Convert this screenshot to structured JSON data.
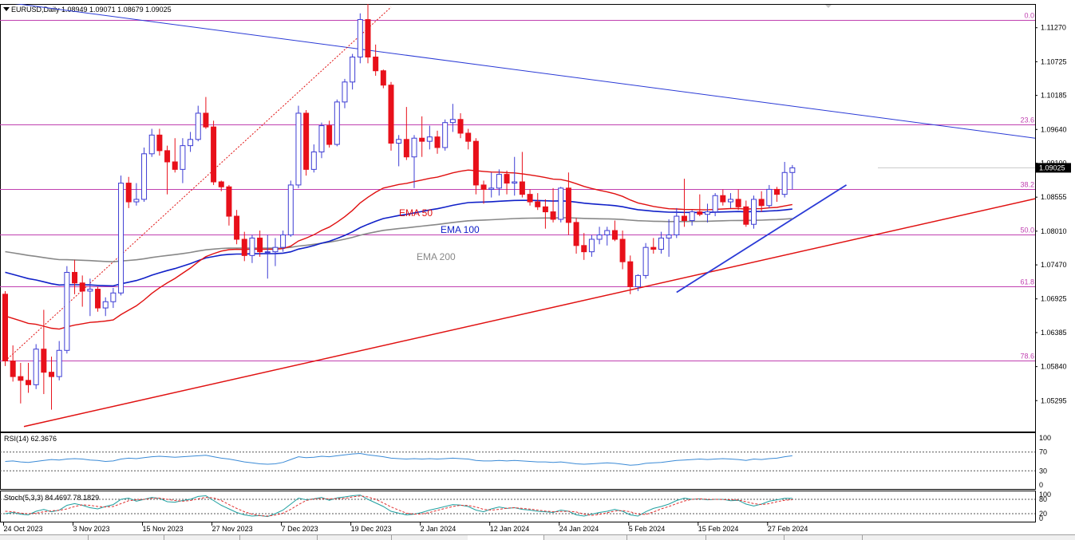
{
  "header": {
    "symbol_line": "EURUSD,Daily  1.08949 1.09071 1.08679 1.09025"
  },
  "colors": {
    "bull_candle": "#3c3cd4",
    "bear_candle": "#e8101a",
    "ema50": "#e01010",
    "ema100": "#1020c8",
    "ema200": "#888888",
    "fib": "#c040b0",
    "trend_down": "#2a3ad6",
    "trend_up_red": "#e01010",
    "rsi_line": "#3a8ad6",
    "stoch_main": "#20a0a0",
    "stoch_signal": "#e03030"
  },
  "chart_data": [
    {
      "type": "candlestick",
      "title": "EURUSD,Daily",
      "ylim": [
        1.048,
        1.1165
      ],
      "y_ticks": [
        "1.11270",
        "1.10725",
        "1.10185",
        "1.09640",
        "1.09100",
        "1.08555",
        "1.08010",
        "1.07470",
        "1.06925",
        "1.06385",
        "1.05840",
        "1.05295"
      ],
      "y_tick_values": [
        1.1127,
        1.10725,
        1.10185,
        1.0964,
        1.091,
        1.08555,
        1.0801,
        1.0747,
        1.06925,
        1.06385,
        1.0584,
        1.05295
      ],
      "current_price_label": "1.09025",
      "current_price": 1.09025,
      "x_labels": [
        "24 Oct 2023",
        "3 Nov 2023",
        "15 Nov 2023",
        "27 Nov 2023",
        "7 Dec 2023",
        "19 Dec 2023",
        "2 Jan 2024",
        "12 Jan 2024",
        "24 Jan 2024",
        "5 Feb 2024",
        "15 Feb 2024",
        "27 Feb 2024"
      ],
      "x_label_bar_index": [
        0,
        9,
        18,
        27,
        36,
        45,
        54,
        63,
        72,
        81,
        90,
        99
      ],
      "candles": [
        [
          1.07,
          1.0705,
          1.0585,
          1.0593
        ],
        [
          1.0593,
          1.0618,
          1.056,
          1.0568
        ],
        [
          1.0568,
          1.059,
          1.0525,
          1.0562
        ],
        [
          1.0562,
          1.059,
          1.0542,
          1.0555
        ],
        [
          1.0555,
          1.062,
          1.0548,
          1.0612
        ],
        [
          1.0612,
          1.0675,
          1.054,
          1.0575
        ],
        [
          1.0575,
          1.06,
          1.0515,
          1.0568
        ],
        [
          1.0568,
          1.0625,
          1.0562,
          1.061
        ],
        [
          1.061,
          1.0745,
          1.0605,
          1.0735
        ],
        [
          1.0735,
          1.0755,
          1.07,
          1.0718
        ],
        [
          1.0718,
          1.073,
          1.068,
          1.0705
        ],
        [
          1.0705,
          1.0725,
          1.0665,
          1.0708
        ],
        [
          1.0708,
          1.0712,
          1.0672,
          1.0678
        ],
        [
          1.0678,
          1.0695,
          1.0665,
          1.0688
        ],
        [
          1.0688,
          1.071,
          1.0678,
          1.0702
        ],
        [
          1.0702,
          1.089,
          1.0698,
          1.0878
        ],
        [
          1.0878,
          1.0888,
          1.0838,
          1.0848
        ],
        [
          1.0848,
          1.0878,
          1.0842,
          1.0852
        ],
        [
          1.0852,
          1.0935,
          1.0848,
          1.0925
        ],
        [
          1.0925,
          1.0965,
          1.092,
          1.0955
        ],
        [
          1.0955,
          1.0965,
          1.0922,
          1.093
        ],
        [
          1.093,
          1.0938,
          1.086,
          1.0912
        ],
        [
          1.0912,
          1.095,
          1.0895,
          1.09
        ],
        [
          1.09,
          1.095,
          1.0878,
          1.0938
        ],
        [
          1.0938,
          1.096,
          1.0928,
          1.0948
        ],
        [
          1.0948,
          1.1002,
          1.0945,
          1.099
        ],
        [
          1.099,
          1.1016,
          1.0965,
          1.0968
        ],
        [
          1.0968,
          1.0978,
          1.0875,
          1.088
        ],
        [
          1.088,
          1.0882,
          1.0865,
          1.0872
        ],
        [
          1.0872,
          1.0875,
          1.081,
          1.0825
        ],
        [
          1.0825,
          1.0835,
          1.078,
          1.0788
        ],
        [
          1.0788,
          1.08,
          1.0753,
          1.0762
        ],
        [
          1.0762,
          1.0795,
          1.075,
          1.079
        ],
        [
          1.079,
          1.0802,
          1.076,
          1.0768
        ],
        [
          1.0768,
          1.0795,
          1.0725,
          1.0768
        ],
        [
          1.0768,
          1.079,
          1.0745,
          1.0775
        ],
        [
          1.0775,
          1.0802,
          1.0768,
          1.0795
        ],
        [
          1.0795,
          1.0882,
          1.0792,
          1.0875
        ],
        [
          1.0875,
          1.1002,
          1.087,
          1.099
        ],
        [
          1.099,
          1.0995,
          1.089,
          1.09
        ],
        [
          1.09,
          1.094,
          1.0895,
          1.0928
        ],
        [
          1.0928,
          1.0975,
          1.0918,
          1.097
        ],
        [
          1.097,
          1.0978,
          1.0935,
          1.094
        ],
        [
          1.094,
          1.1012,
          1.0937,
          1.1008
        ],
        [
          1.1008,
          1.1045,
          1.0998,
          1.104
        ],
        [
          1.104,
          1.1085,
          1.1028,
          1.108
        ],
        [
          1.108,
          1.115,
          1.107,
          1.114
        ],
        [
          1.114,
          1.1165,
          1.107,
          1.108
        ],
        [
          1.108,
          1.11,
          1.105,
          1.1058
        ],
        [
          1.1058,
          1.106,
          1.103,
          1.1035
        ],
        [
          1.1035,
          1.104,
          1.093,
          1.0942
        ],
        [
          1.0942,
          1.0955,
          1.0905,
          1.0948
        ],
        [
          1.0948,
          1.1,
          1.0915,
          1.092
        ],
        [
          1.092,
          1.0955,
          1.087,
          1.095
        ],
        [
          1.095,
          1.0985,
          1.092,
          1.0945
        ],
        [
          1.0945,
          1.097,
          1.0932,
          1.0952
        ],
        [
          1.0952,
          1.0962,
          1.0925,
          1.0935
        ],
        [
          1.0935,
          1.098,
          1.093,
          1.0975
        ],
        [
          1.0975,
          1.1005,
          1.096,
          1.098
        ],
        [
          1.098,
          1.099,
          1.095,
          1.0958
        ],
        [
          1.0958,
          1.0965,
          1.0932,
          1.0945
        ],
        [
          1.0945,
          1.095,
          1.086,
          1.0875
        ],
        [
          1.0875,
          1.0882,
          1.0845,
          1.0868
        ],
        [
          1.0868,
          1.0895,
          1.0855,
          1.087
        ],
        [
          1.087,
          1.09,
          1.0858,
          1.0892
        ],
        [
          1.0892,
          1.0898,
          1.086,
          1.0878
        ],
        [
          1.0878,
          1.092,
          1.0858,
          1.088
        ],
        [
          1.088,
          1.0928,
          1.0855,
          1.086
        ],
        [
          1.086,
          1.0868,
          1.0842,
          1.0848
        ],
        [
          1.0848,
          1.0862,
          1.0835,
          1.084
        ],
        [
          1.084,
          1.0852,
          1.0805,
          1.0832
        ],
        [
          1.0832,
          1.087,
          1.0815,
          1.082
        ],
        [
          1.082,
          1.0872,
          1.0815,
          1.087
        ],
        [
          1.087,
          1.0895,
          1.0795,
          1.0815
        ],
        [
          1.0815,
          1.0822,
          1.0765,
          1.0778
        ],
        [
          1.0778,
          1.0798,
          1.0755,
          1.0768
        ],
        [
          1.0768,
          1.0795,
          1.076,
          1.0788
        ],
        [
          1.0788,
          1.0808,
          1.078,
          1.0795
        ],
        [
          1.0795,
          1.0808,
          1.0778,
          1.0802
        ],
        [
          1.0802,
          1.0818,
          1.0785,
          1.0788
        ],
        [
          1.0788,
          1.0802,
          1.074,
          1.0752
        ],
        [
          1.0752,
          1.0762,
          1.07,
          1.0712
        ],
        [
          1.0712,
          1.0732,
          1.0705,
          1.073
        ],
        [
          1.073,
          1.0782,
          1.0725,
          1.0775
        ],
        [
          1.0775,
          1.079,
          1.0765,
          1.0772
        ],
        [
          1.0772,
          1.08,
          1.0765,
          1.079
        ],
        [
          1.079,
          1.082,
          1.076,
          1.0795
        ],
        [
          1.0795,
          1.0838,
          1.079,
          1.0825
        ],
        [
          1.0825,
          1.0885,
          1.0808,
          1.0818
        ],
        [
          1.0818,
          1.0835,
          1.081,
          1.0832
        ],
        [
          1.0832,
          1.086,
          1.0825,
          1.0828
        ],
        [
          1.0828,
          1.0845,
          1.0815,
          1.0832
        ],
        [
          1.0832,
          1.0862,
          1.0825,
          1.0858
        ],
        [
          1.0858,
          1.0868,
          1.0842,
          1.0848
        ],
        [
          1.0848,
          1.0862,
          1.0838,
          1.0852
        ],
        [
          1.0852,
          1.0868,
          1.0835,
          1.084
        ],
        [
          1.084,
          1.085,
          1.0808,
          1.0812
        ],
        [
          1.0812,
          1.0858,
          1.0805,
          1.0852
        ],
        [
          1.0852,
          1.0865,
          1.0832,
          1.0842
        ],
        [
          1.0842,
          1.0875,
          1.0838,
          1.0868
        ],
        [
          1.0868,
          1.0872,
          1.0848,
          1.086
        ],
        [
          1.086,
          1.0912,
          1.0855,
          1.0895
        ],
        [
          1.0895,
          1.0907,
          1.0868,
          1.09025
        ]
      ],
      "ema_labels": [
        "EMA 50",
        "EMA 100",
        "EMA 200"
      ],
      "fib_levels": [
        {
          "label": "0.0",
          "price": 1.114
        },
        {
          "label": "23.6",
          "price": 1.0972
        },
        {
          "label": "38.2",
          "price": 1.0868
        },
        {
          "label": "50.0",
          "price": 1.0796
        },
        {
          "label": "61.8",
          "price": 1.0713
        },
        {
          "label": "78.6",
          "price": 1.0594
        }
      ]
    },
    {
      "type": "line",
      "title": "RSI(14) 62.3676",
      "ylim": [
        0,
        100
      ],
      "y_ticks": [
        "100",
        "70",
        "30",
        "0"
      ],
      "y_tick_values": [
        100,
        70,
        30,
        0
      ],
      "levels": [
        70,
        30
      ],
      "values": [
        50,
        51,
        49,
        48,
        50,
        52,
        54,
        53,
        55,
        56,
        55,
        53,
        52,
        50,
        51,
        55,
        57,
        56,
        58,
        60,
        61,
        60,
        59,
        60,
        61,
        62,
        63,
        60,
        57,
        55,
        52,
        49,
        47,
        45,
        44,
        45,
        48,
        54,
        60,
        58,
        59,
        61,
        60,
        62,
        64,
        66,
        67,
        64,
        62,
        60,
        57,
        56,
        55,
        56,
        55,
        56,
        55,
        56,
        57,
        56,
        55,
        52,
        51,
        51,
        52,
        51,
        52,
        51,
        50,
        49,
        49,
        48,
        49,
        47,
        45,
        44,
        45,
        46,
        47,
        46,
        44,
        42,
        43,
        46,
        47,
        48,
        50,
        52,
        53,
        54,
        55,
        54,
        55,
        56,
        55,
        54,
        52,
        55,
        54,
        56,
        57,
        60,
        62
      ]
    },
    {
      "type": "line",
      "title": "Stoch(5,3,3) 84.4697 78.1829",
      "ylim": [
        0,
        100
      ],
      "y_ticks": [
        "100",
        "80",
        "20",
        "0"
      ],
      "y_tick_values": [
        100,
        80,
        20,
        0
      ],
      "levels": [
        80,
        20
      ],
      "series": [
        {
          "values": [
            20,
            25,
            18,
            15,
            30,
            38,
            28,
            35,
            55,
            62,
            55,
            45,
            40,
            50,
            58,
            80,
            85,
            72,
            80,
            88,
            84,
            70,
            68,
            75,
            80,
            92,
            95,
            75,
            55,
            40,
            25,
            15,
            10,
            12,
            8,
            20,
            35,
            60,
            85,
            78,
            82,
            88,
            76,
            86,
            90,
            95,
            98,
            80,
            65,
            50,
            30,
            22,
            15,
            18,
            25,
            35,
            42,
            50,
            58,
            56,
            50,
            35,
            28,
            40,
            48,
            42,
            45,
            38,
            35,
            30,
            28,
            25,
            35,
            30,
            15,
            10,
            18,
            25,
            30,
            38,
            30,
            15,
            10,
            28,
            42,
            50,
            60,
            75,
            85,
            80,
            82,
            78,
            80,
            80,
            74,
            76,
            60,
            52,
            60,
            72,
            78,
            84,
            84.4697
          ]
        },
        {
          "values": [
            30,
            28,
            22,
            20,
            22,
            28,
            32,
            34,
            40,
            50,
            57,
            55,
            50,
            48,
            50,
            62,
            74,
            78,
            80,
            84,
            85,
            80,
            75,
            72,
            75,
            82,
            88,
            86,
            75,
            58,
            42,
            28,
            18,
            12,
            10,
            14,
            22,
            38,
            58,
            75,
            82,
            83,
            82,
            83,
            84,
            90,
            94,
            90,
            80,
            65,
            48,
            35,
            22,
            18,
            19,
            25,
            34,
            42,
            50,
            55,
            54,
            48,
            38,
            35,
            38,
            43,
            45,
            42,
            39,
            35,
            31,
            28,
            29,
            30,
            27,
            18,
            13,
            17,
            24,
            31,
            33,
            28,
            18,
            17,
            27,
            40,
            50,
            62,
            73,
            80,
            82,
            80,
            80,
            79,
            78,
            77,
            70,
            62,
            58,
            62,
            70,
            76,
            78.1829
          ]
        }
      ]
    }
  ]
}
